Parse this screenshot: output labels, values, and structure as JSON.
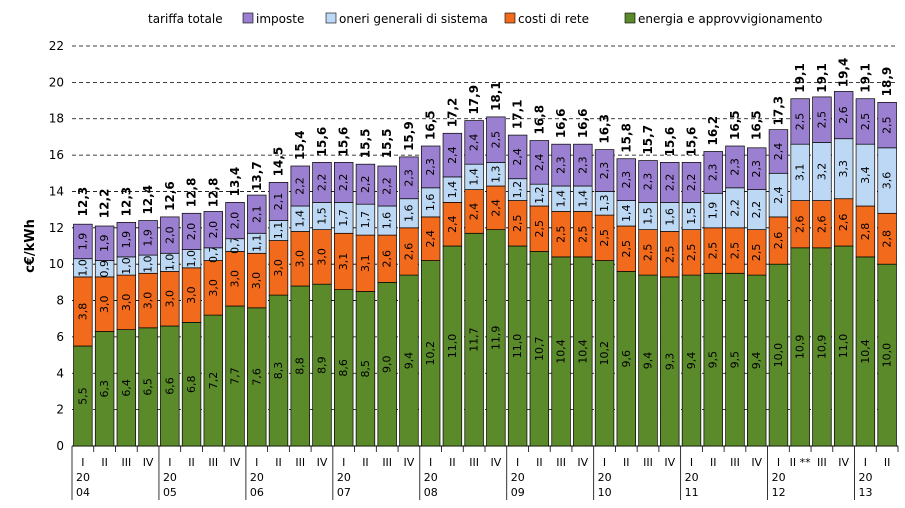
{
  "legend_title": "tariffa totale",
  "chart_data": {
    "type": "bar",
    "stacked": true,
    "ylabel": "c€/kWh",
    "ylim": [
      0,
      22
    ],
    "yticks": [
      "0",
      "2",
      "4",
      "6",
      "8",
      "10",
      "12",
      "14",
      "16",
      "18",
      "20",
      "22"
    ],
    "grid": true,
    "legend_position": "top",
    "categories": [
      "I",
      "II",
      "III",
      "IV",
      "I",
      "II",
      "III",
      "IV",
      "I",
      "II",
      "III",
      "IV",
      "I",
      "II",
      "III",
      "IV",
      "I",
      "II",
      "III",
      "IV",
      "I",
      "II",
      "III",
      "IV",
      "I",
      "II",
      "III",
      "IV",
      "I",
      "II",
      "III",
      "IV",
      "I",
      "II **",
      "III",
      "IV",
      "I",
      "II"
    ],
    "year_labels": [
      {
        "top": "20",
        "bottom": "04",
        "start": 0
      },
      {
        "top": "20",
        "bottom": "05",
        "start": 4
      },
      {
        "top": "20",
        "bottom": "06",
        "start": 8
      },
      {
        "top": "20",
        "bottom": "07",
        "start": 12
      },
      {
        "top": "20",
        "bottom": "08",
        "start": 16
      },
      {
        "top": "20",
        "bottom": "09",
        "start": 20
      },
      {
        "top": "20",
        "bottom": "10",
        "start": 24
      },
      {
        "top": "20",
        "bottom": "11",
        "start": 28
      },
      {
        "top": "20",
        "bottom": "12",
        "start": 32
      },
      {
        "top": "20",
        "bottom": "13",
        "start": 36
      }
    ],
    "series": [
      {
        "name": "energia e approvvigionamento",
        "color": "#5a8a2a",
        "values": [
          5.5,
          6.3,
          6.4,
          6.5,
          6.6,
          6.8,
          7.2,
          7.7,
          7.6,
          8.3,
          8.8,
          8.9,
          8.6,
          8.5,
          9.0,
          9.4,
          10.2,
          11.0,
          11.7,
          11.9,
          11.0,
          10.7,
          10.4,
          10.4,
          10.2,
          9.6,
          9.4,
          9.3,
          9.4,
          9.5,
          9.5,
          9.4,
          10.0,
          10.9,
          10.9,
          11.0,
          10.4,
          10.0
        ],
        "labels": [
          "5,5",
          "6,3",
          "6,4",
          "6,5",
          "6,6",
          "6,8",
          "7,2",
          "7,7",
          "7,6",
          "8,3",
          "8,8",
          "8,9",
          "8,6",
          "8,5",
          "9,0",
          "9,4",
          "10,2",
          "11,0",
          "11,7",
          "11,9",
          "11,0",
          "10,7",
          "10,4",
          "10,4",
          "10,2",
          "9,6",
          "9,4",
          "9,3",
          "9,4",
          "9,5",
          "9,5",
          "9,4",
          "10,0",
          "10,9",
          "10,9",
          "11,0",
          "10,4",
          "10,0"
        ]
      },
      {
        "name": "costi di rete",
        "color": "#f26a1b",
        "values": [
          3.8,
          3.0,
          3.0,
          3.0,
          3.0,
          3.0,
          3.0,
          3.0,
          3.0,
          3.0,
          3.0,
          3.0,
          3.1,
          3.1,
          2.6,
          2.6,
          2.4,
          2.4,
          2.4,
          2.4,
          2.5,
          2.5,
          2.5,
          2.5,
          2.5,
          2.5,
          2.5,
          2.5,
          2.5,
          2.5,
          2.5,
          2.5,
          2.6,
          2.6,
          2.6,
          2.6,
          2.8,
          2.8
        ],
        "labels": [
          "3,8",
          "3,0",
          "3,0",
          "3,0",
          "3,0",
          "3,0",
          "3,0",
          "3,0",
          "3,0",
          "3,0",
          "3,0",
          "3,0",
          "3,1",
          "3,1",
          "2,6",
          "2,6",
          "2,4",
          "2,4",
          "2,4",
          "2,4",
          "2,5",
          "2,5",
          "2,5",
          "2,5",
          "2,5",
          "2,5",
          "2,5",
          "2,5",
          "2,5",
          "2,5",
          "2,5",
          "2,5",
          "2,6",
          "2,6",
          "2,6",
          "2,6",
          "2,8",
          "2,8"
        ]
      },
      {
        "name": "oneri generali di sistema",
        "color": "#bcd8f5",
        "values": [
          1.0,
          0.9,
          1.0,
          1.0,
          1.0,
          1.0,
          0.7,
          0.7,
          1.1,
          1.1,
          1.4,
          1.5,
          1.7,
          1.7,
          1.6,
          1.6,
          1.6,
          1.4,
          1.4,
          1.3,
          1.2,
          1.2,
          1.4,
          1.4,
          1.3,
          1.4,
          1.5,
          1.6,
          1.5,
          1.9,
          2.2,
          2.2,
          2.4,
          3.1,
          3.2,
          3.3,
          3.4,
          3.6
        ],
        "labels": [
          "1,0",
          "0,9",
          "1,0",
          "1,0",
          "1,0",
          "1,0",
          "0,7",
          "0,7",
          "1,1",
          "1,1",
          "1,4",
          "1,5",
          "1,7",
          "1,7",
          "1,6",
          "1,6",
          "1,6",
          "1,4",
          "1,4",
          "1,3",
          "1,2",
          "1,2",
          "1,4",
          "1,4",
          "1,3",
          "1,4",
          "1,5",
          "1,6",
          "1,5",
          "1,9",
          "2,2",
          "2,2",
          "2,4",
          "3,1",
          "3,2",
          "3,3",
          "3,4",
          "3,6"
        ]
      },
      {
        "name": "imposte",
        "color": "#9b7fd0",
        "values": [
          1.9,
          1.9,
          1.9,
          1.9,
          2.0,
          2.0,
          2.0,
          2.0,
          2.1,
          2.1,
          2.2,
          2.2,
          2.2,
          2.2,
          2.2,
          2.3,
          2.3,
          2.4,
          2.4,
          2.5,
          2.4,
          2.4,
          2.3,
          2.3,
          2.3,
          2.3,
          2.3,
          2.2,
          2.2,
          2.3,
          2.3,
          2.3,
          2.4,
          2.5,
          2.5,
          2.6,
          2.5,
          2.5
        ],
        "labels": [
          "1,9",
          "1,9",
          "1,9",
          "1,9",
          "2,0",
          "2,0",
          "2,0",
          "2,0",
          "2,1",
          "2,1",
          "2,2",
          "2,2",
          "2,2",
          "2,2",
          "2,2",
          "2,3",
          "2,3",
          "2,4",
          "2,4",
          "2,5",
          "2,4",
          "2,4",
          "2,3",
          "2,3",
          "2,3",
          "2,3",
          "2,3",
          "2,2",
          "2,2",
          "2,3",
          "2,3",
          "2,3",
          "2,4",
          "2,5",
          "2,5",
          "2,6",
          "2,5",
          "2,5"
        ]
      }
    ],
    "totals": [
      12.3,
      12.2,
      12.3,
      12.4,
      12.6,
      12.8,
      12.8,
      13.4,
      13.7,
      14.5,
      15.4,
      15.6,
      15.6,
      15.5,
      15.5,
      15.9,
      16.5,
      17.2,
      17.9,
      18.1,
      17.1,
      16.8,
      16.6,
      16.6,
      16.3,
      15.8,
      15.7,
      15.6,
      15.6,
      16.2,
      16.5,
      16.5,
      17.3,
      19.1,
      19.1,
      19.4,
      19.1,
      18.9
    ],
    "total_labels": [
      "12,3",
      "12,2",
      "12,3",
      "12,4",
      "12,6",
      "12,8",
      "12,8",
      "13,4",
      "13,7",
      "14,5",
      "15,4",
      "15,6",
      "15,6",
      "15,5",
      "15,5",
      "15,9",
      "16,5",
      "17,2",
      "17,9",
      "18,1",
      "17,1",
      "16,8",
      "16,6",
      "16,6",
      "16,3",
      "15,8",
      "15,7",
      "15,6",
      "15,6",
      "16,2",
      "16,5",
      "16,5",
      "17,3",
      "19,1",
      "19,1",
      "19,4",
      "19,1",
      "18,9"
    ]
  }
}
